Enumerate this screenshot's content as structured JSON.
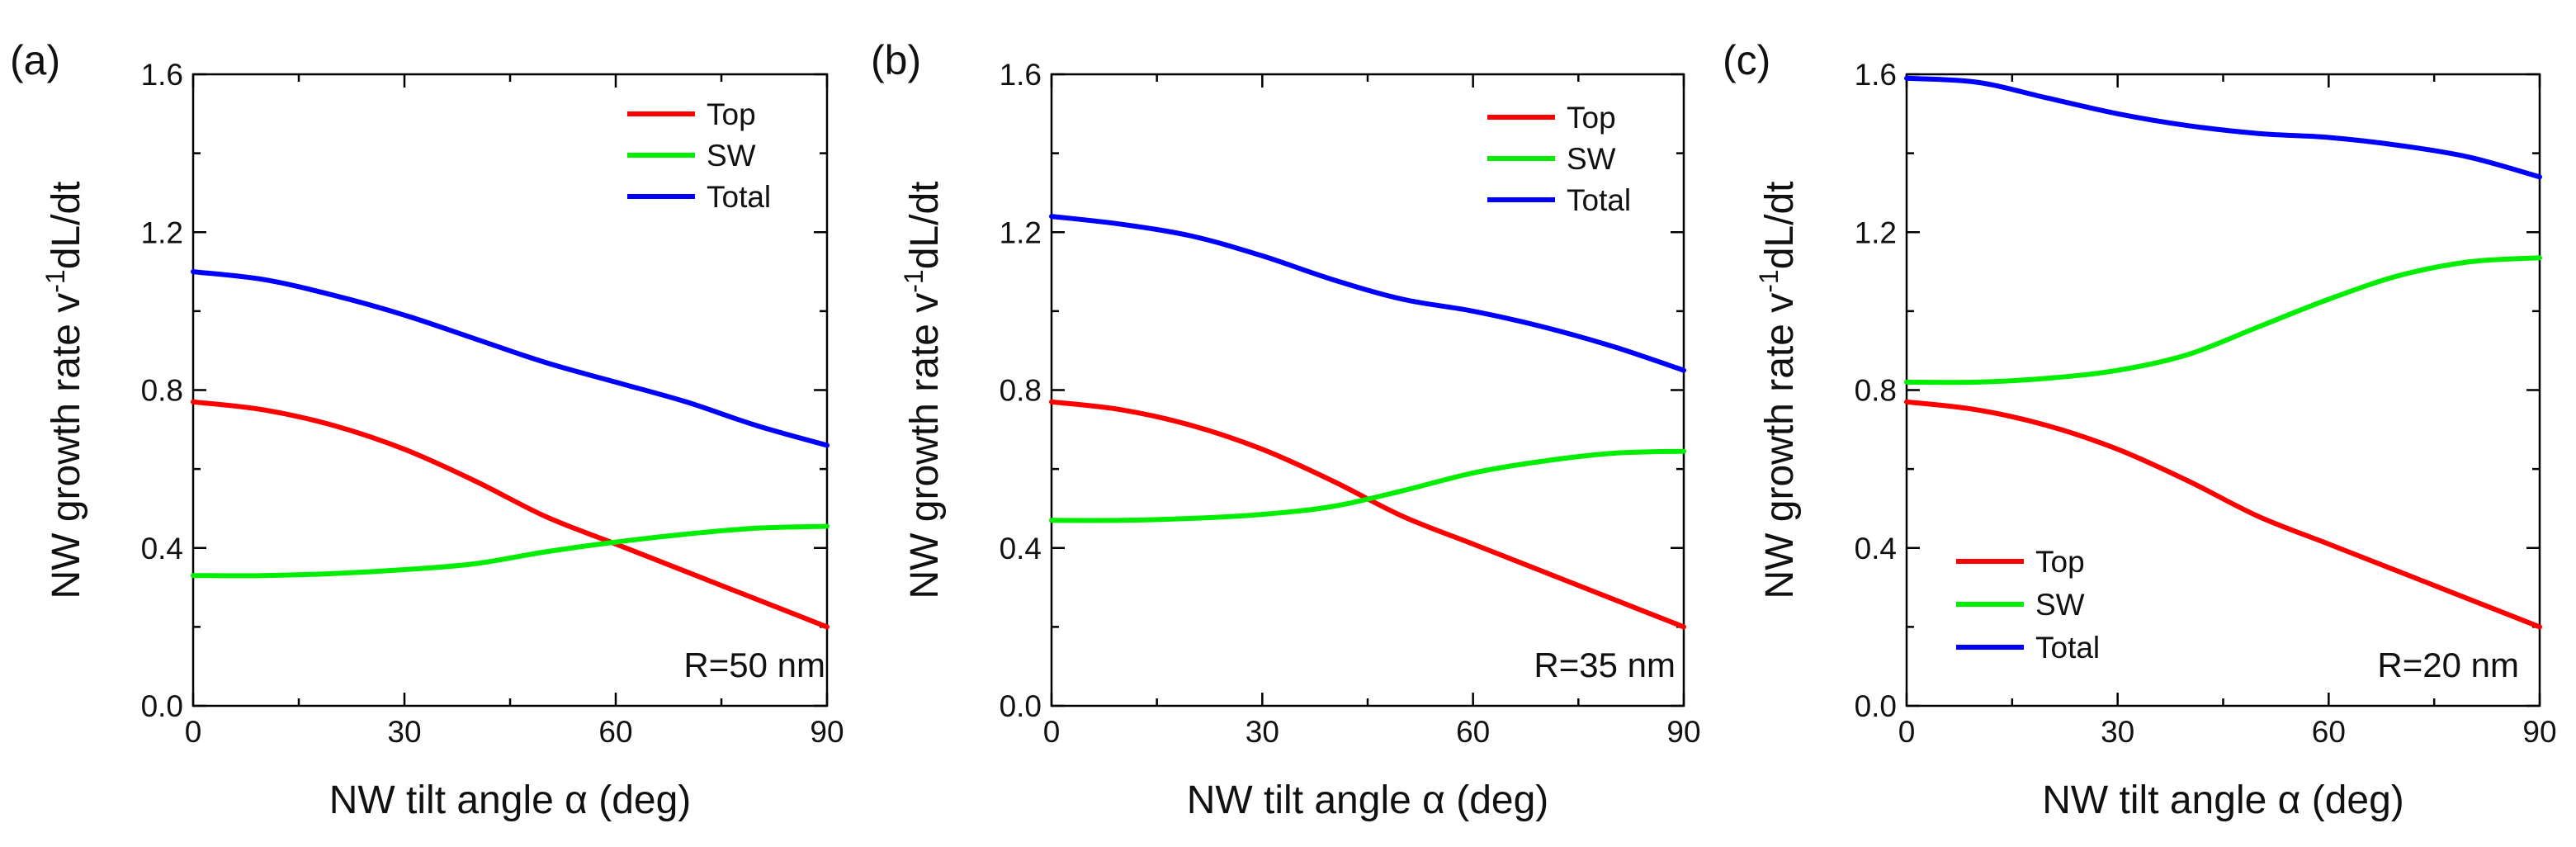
{
  "chart_data": [
    {
      "type": "line",
      "panel_label": "(a)",
      "xlabel": "NW tilt angle α (deg)",
      "ylabel_base": "NW growth rate v",
      "ylabel_sup": "-1",
      "ylabel_tail": "dL/dt",
      "xlim": [
        0,
        90
      ],
      "ylim": [
        0,
        1.6
      ],
      "xticks": [
        0,
        30,
        60,
        90
      ],
      "yticks": [
        0.0,
        0.4,
        0.8,
        1.2,
        1.6
      ],
      "xtick_labels": [
        "0",
        "30",
        "60",
        "90"
      ],
      "ytick_labels": [
        "0.0",
        "0.4",
        "0.8",
        "1.2",
        "1.6"
      ],
      "annotation": "R=50 nm",
      "legend_position": "top-right",
      "grid": false,
      "x": [
        0,
        10,
        20,
        30,
        40,
        50,
        60,
        70,
        80,
        90
      ],
      "series": [
        {
          "name": "Top",
          "color": "#ff0000",
          "values": [
            0.77,
            0.75,
            0.71,
            0.65,
            0.57,
            0.48,
            0.41,
            0.34,
            0.27,
            0.2
          ]
        },
        {
          "name": "SW",
          "color": "#00ee00",
          "values": [
            0.33,
            0.33,
            0.335,
            0.345,
            0.36,
            0.39,
            0.415,
            0.435,
            0.45,
            0.455
          ]
        },
        {
          "name": "Total",
          "color": "#0000ff",
          "values": [
            1.1,
            1.08,
            1.04,
            0.99,
            0.93,
            0.87,
            0.82,
            0.77,
            0.71,
            0.66
          ]
        }
      ]
    },
    {
      "type": "line",
      "panel_label": "(b)",
      "xlabel": "NW tilt angle α (deg)",
      "ylabel_base": "NW growth rate v",
      "ylabel_sup": "-1",
      "ylabel_tail": "dL/dt",
      "xlim": [
        0,
        90
      ],
      "ylim": [
        0,
        1.6
      ],
      "xticks": [
        0,
        30,
        60,
        90
      ],
      "yticks": [
        0.0,
        0.4,
        0.8,
        1.2,
        1.6
      ],
      "xtick_labels": [
        "0",
        "30",
        "60",
        "90"
      ],
      "ytick_labels": [
        "0.0",
        "0.4",
        "0.8",
        "1.2",
        "1.6"
      ],
      "annotation": "R=35 nm",
      "legend_position": "top-right",
      "grid": false,
      "x": [
        0,
        10,
        20,
        30,
        40,
        50,
        60,
        70,
        80,
        90
      ],
      "series": [
        {
          "name": "Top",
          "color": "#ff0000",
          "values": [
            0.77,
            0.75,
            0.71,
            0.65,
            0.57,
            0.48,
            0.41,
            0.34,
            0.27,
            0.2
          ]
        },
        {
          "name": "SW",
          "color": "#00ee00",
          "values": [
            0.47,
            0.47,
            0.475,
            0.485,
            0.505,
            0.545,
            0.59,
            0.62,
            0.64,
            0.645
          ]
        },
        {
          "name": "Total",
          "color": "#0000ff",
          "values": [
            1.24,
            1.22,
            1.19,
            1.14,
            1.08,
            1.03,
            1.0,
            0.96,
            0.91,
            0.85
          ]
        }
      ]
    },
    {
      "type": "line",
      "panel_label": "(c)",
      "xlabel": "NW tilt angle α (deg)",
      "ylabel_base": "NW growth rate v",
      "ylabel_sup": "-1",
      "ylabel_tail": "dL/dt",
      "xlim": [
        0,
        90
      ],
      "ylim": [
        0,
        1.6
      ],
      "xticks": [
        0,
        30,
        60,
        90
      ],
      "yticks": [
        0.0,
        0.4,
        0.8,
        1.2,
        1.6
      ],
      "xtick_labels": [
        "0",
        "30",
        "60",
        "90"
      ],
      "ytick_labels": [
        "0.0",
        "0.4",
        "0.8",
        "1.2",
        "1.6"
      ],
      "annotation": "R=20 nm",
      "legend_position": "bottom-left",
      "grid": false,
      "x": [
        0,
        10,
        20,
        30,
        40,
        50,
        60,
        70,
        80,
        90
      ],
      "series": [
        {
          "name": "Top",
          "color": "#ff0000",
          "values": [
            0.77,
            0.75,
            0.71,
            0.65,
            0.57,
            0.48,
            0.41,
            0.34,
            0.27,
            0.2
          ]
        },
        {
          "name": "SW",
          "color": "#00ee00",
          "values": [
            0.82,
            0.82,
            0.83,
            0.85,
            0.89,
            0.96,
            1.03,
            1.09,
            1.125,
            1.135
          ]
        },
        {
          "name": "Total",
          "color": "#0000ff",
          "values": [
            1.59,
            1.58,
            1.54,
            1.5,
            1.47,
            1.45,
            1.44,
            1.42,
            1.39,
            1.34
          ]
        }
      ]
    }
  ]
}
